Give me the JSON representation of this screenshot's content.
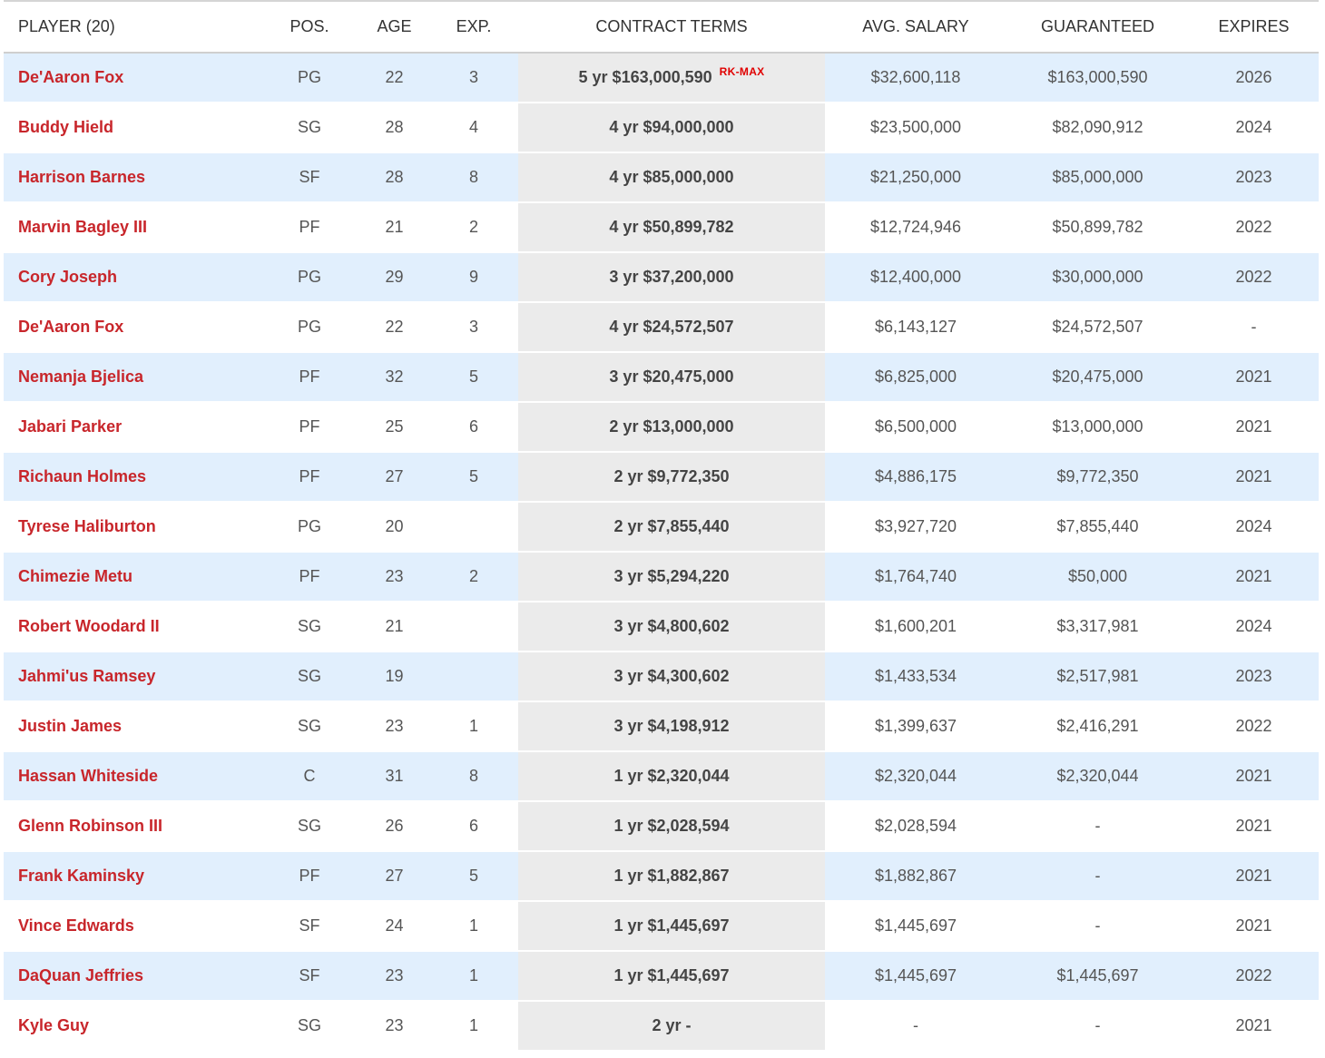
{
  "table": {
    "headers": {
      "player": "PLAYER (20)",
      "pos": "POS.",
      "age": "AGE",
      "exp": "EXP.",
      "contract": "CONTRACT TERMS",
      "avg_salary": "AVG. SALARY",
      "guaranteed": "GUARANTEED",
      "expires": "EXPIRES"
    },
    "rows": [
      {
        "name": "De'Aaron Fox",
        "pos": "PG",
        "age": "22",
        "exp": "3",
        "contract": "5 yr $163,000,590",
        "badge": "RK-MAX",
        "avg": "$32,600,118",
        "guaranteed": "$163,000,590",
        "expires": "2026"
      },
      {
        "name": "Buddy Hield",
        "pos": "SG",
        "age": "28",
        "exp": "4",
        "contract": "4 yr $94,000,000",
        "badge": "",
        "avg": "$23,500,000",
        "guaranteed": "$82,090,912",
        "expires": "2024"
      },
      {
        "name": "Harrison Barnes",
        "pos": "SF",
        "age": "28",
        "exp": "8",
        "contract": "4 yr $85,000,000",
        "badge": "",
        "avg": "$21,250,000",
        "guaranteed": "$85,000,000",
        "expires": "2023"
      },
      {
        "name": "Marvin Bagley III",
        "pos": "PF",
        "age": "21",
        "exp": "2",
        "contract": "4 yr $50,899,782",
        "badge": "",
        "avg": "$12,724,946",
        "guaranteed": "$50,899,782",
        "expires": "2022"
      },
      {
        "name": "Cory Joseph",
        "pos": "PG",
        "age": "29",
        "exp": "9",
        "contract": "3 yr $37,200,000",
        "badge": "",
        "avg": "$12,400,000",
        "guaranteed": "$30,000,000",
        "expires": "2022"
      },
      {
        "name": "De'Aaron Fox",
        "pos": "PG",
        "age": "22",
        "exp": "3",
        "contract": "4 yr $24,572,507",
        "badge": "",
        "avg": "$6,143,127",
        "guaranteed": "$24,572,507",
        "expires": "-"
      },
      {
        "name": "Nemanja Bjelica",
        "pos": "PF",
        "age": "32",
        "exp": "5",
        "contract": "3 yr $20,475,000",
        "badge": "",
        "avg": "$6,825,000",
        "guaranteed": "$20,475,000",
        "expires": "2021"
      },
      {
        "name": "Jabari Parker",
        "pos": "PF",
        "age": "25",
        "exp": "6",
        "contract": "2 yr $13,000,000",
        "badge": "",
        "avg": "$6,500,000",
        "guaranteed": "$13,000,000",
        "expires": "2021"
      },
      {
        "name": "Richaun Holmes",
        "pos": "PF",
        "age": "27",
        "exp": "5",
        "contract": "2 yr $9,772,350",
        "badge": "",
        "avg": "$4,886,175",
        "guaranteed": "$9,772,350",
        "expires": "2021"
      },
      {
        "name": "Tyrese Haliburton",
        "pos": "PG",
        "age": "20",
        "exp": "",
        "contract": "2 yr $7,855,440",
        "badge": "",
        "avg": "$3,927,720",
        "guaranteed": "$7,855,440",
        "expires": "2024"
      },
      {
        "name": "Chimezie Metu",
        "pos": "PF",
        "age": "23",
        "exp": "2",
        "contract": "3 yr $5,294,220",
        "badge": "",
        "avg": "$1,764,740",
        "guaranteed": "$50,000",
        "expires": "2021"
      },
      {
        "name": "Robert Woodard II",
        "pos": "SG",
        "age": "21",
        "exp": "",
        "contract": "3 yr $4,800,602",
        "badge": "",
        "avg": "$1,600,201",
        "guaranteed": "$3,317,981",
        "expires": "2024"
      },
      {
        "name": "Jahmi'us Ramsey",
        "pos": "SG",
        "age": "19",
        "exp": "",
        "contract": "3 yr $4,300,602",
        "badge": "",
        "avg": "$1,433,534",
        "guaranteed": "$2,517,981",
        "expires": "2023"
      },
      {
        "name": "Justin James",
        "pos": "SG",
        "age": "23",
        "exp": "1",
        "contract": "3 yr $4,198,912",
        "badge": "",
        "avg": "$1,399,637",
        "guaranteed": "$2,416,291",
        "expires": "2022"
      },
      {
        "name": "Hassan Whiteside",
        "pos": "C",
        "age": "31",
        "exp": "8",
        "contract": "1 yr $2,320,044",
        "badge": "",
        "avg": "$2,320,044",
        "guaranteed": "$2,320,044",
        "expires": "2021"
      },
      {
        "name": "Glenn Robinson III",
        "pos": "SG",
        "age": "26",
        "exp": "6",
        "contract": "1 yr $2,028,594",
        "badge": "",
        "avg": "$2,028,594",
        "guaranteed": "-",
        "expires": "2021"
      },
      {
        "name": "Frank Kaminsky",
        "pos": "PF",
        "age": "27",
        "exp": "5",
        "contract": "1 yr $1,882,867",
        "badge": "",
        "avg": "$1,882,867",
        "guaranteed": "-",
        "expires": "2021"
      },
      {
        "name": "Vince Edwards",
        "pos": "SF",
        "age": "24",
        "exp": "1",
        "contract": "1 yr $1,445,697",
        "badge": "",
        "avg": "$1,445,697",
        "guaranteed": "-",
        "expires": "2021"
      },
      {
        "name": "DaQuan Jeffries",
        "pos": "SF",
        "age": "23",
        "exp": "1",
        "contract": "1 yr $1,445,697",
        "badge": "",
        "avg": "$1,445,697",
        "guaranteed": "$1,445,697",
        "expires": "2022"
      },
      {
        "name": "Kyle Guy",
        "pos": "SG",
        "age": "23",
        "exp": "1",
        "contract": "2 yr -",
        "badge": "",
        "avg": "-",
        "guaranteed": "-",
        "expires": "2021"
      }
    ]
  }
}
